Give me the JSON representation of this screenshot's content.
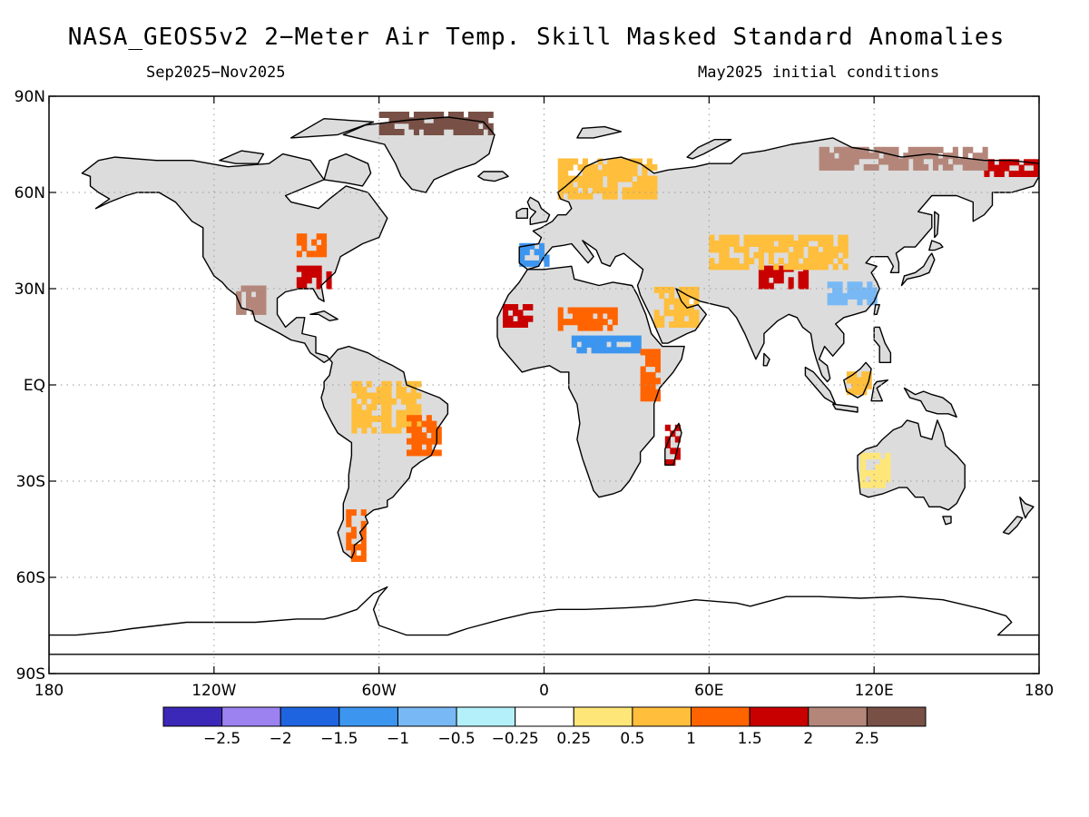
{
  "header": {
    "title": "NASA_GEOS5v2 2−Meter Air Temp. Skill Masked Standard Anomalies",
    "period": "Sep2025−Nov2025",
    "initial_conditions": "May2025 initial conditions"
  },
  "map": {
    "projection": "equirectangular",
    "lon_range": [
      -180,
      180
    ],
    "lat_range": [
      -90,
      90
    ],
    "grid": true,
    "lat_ticks": [
      {
        "value": 90,
        "label": "90N"
      },
      {
        "value": 60,
        "label": "60N"
      },
      {
        "value": 30,
        "label": "30N"
      },
      {
        "value": 0,
        "label": "EQ"
      },
      {
        "value": -30,
        "label": "30S"
      },
      {
        "value": -60,
        "label": "60S"
      },
      {
        "value": -90,
        "label": "90S"
      }
    ],
    "lon_ticks": [
      {
        "value": -180,
        "label": "180"
      },
      {
        "value": -120,
        "label": "120W"
      },
      {
        "value": -60,
        "label": "60W"
      },
      {
        "value": 0,
        "label": "0"
      },
      {
        "value": 60,
        "label": "60E"
      },
      {
        "value": 120,
        "label": "120E"
      },
      {
        "value": 180,
        "label": "180"
      }
    ],
    "colors": {
      "land_masked": "#dcdcdc",
      "coastline": "#000000",
      "gridline": "#9a9a9a",
      "frame": "#000000"
    }
  },
  "colorbar": {
    "colors": [
      "#3b28b8",
      "#9b82f0",
      "#1e64e0",
      "#3c96f0",
      "#78b9f5",
      "#b4f0fa",
      "#ffffff",
      "#ffe678",
      "#ffbe3c",
      "#ff6400",
      "#c80000",
      "#b4867a",
      "#785046"
    ],
    "labels": [
      "−2.5",
      "−2",
      "−1.5",
      "−1",
      "−0.5",
      "−0.25",
      "0.25",
      "0.5",
      "1",
      "1.5",
      "2",
      "2.5"
    ]
  },
  "anomaly_regions": [
    {
      "name": "greenland-north",
      "lon": [
        -60,
        -20
      ],
      "lat": [
        78,
        84
      ],
      "color": "#785046"
    },
    {
      "name": "us-southeast",
      "lon": [
        -90,
        -78
      ],
      "lat": [
        30,
        37
      ],
      "color": "#c80000"
    },
    {
      "name": "us-great-lakes",
      "lon": [
        -90,
        -80
      ],
      "lat": [
        40,
        46
      ],
      "color": "#ff6400"
    },
    {
      "name": "mexico-northwest",
      "lon": [
        -112,
        -102
      ],
      "lat": [
        22,
        30
      ],
      "color": "#b4867a"
    },
    {
      "name": "scandinavia",
      "lon": [
        5,
        40
      ],
      "lat": [
        58,
        70
      ],
      "color": "#ffbe3c"
    },
    {
      "name": "iberia",
      "lon": [
        -9,
        0
      ],
      "lat": [
        37,
        43
      ],
      "color": "#3c96f0"
    },
    {
      "name": "sahara-west",
      "lon": [
        -15,
        -5
      ],
      "lat": [
        18,
        25
      ],
      "color": "#c80000"
    },
    {
      "name": "sahara-east",
      "lon": [
        5,
        25
      ],
      "lat": [
        17,
        24
      ],
      "color": "#ff6400"
    },
    {
      "name": "sahel-cool",
      "lon": [
        10,
        35
      ],
      "lat": [
        10,
        14
      ],
      "color": "#3c96f0"
    },
    {
      "name": "arabia",
      "lon": [
        40,
        55
      ],
      "lat": [
        18,
        30
      ],
      "color": "#ffbe3c"
    },
    {
      "name": "tibet",
      "lon": [
        78,
        95
      ],
      "lat": [
        30,
        36
      ],
      "color": "#c80000"
    },
    {
      "name": "central-asia",
      "lon": [
        60,
        110
      ],
      "lat": [
        36,
        45
      ],
      "color": "#ffbe3c"
    },
    {
      "name": "china-south-cool",
      "lon": [
        103,
        120
      ],
      "lat": [
        25,
        32
      ],
      "color": "#78b9f5"
    },
    {
      "name": "siberia-east",
      "lon": [
        160,
        180
      ],
      "lat": [
        65,
        70
      ],
      "color": "#c80000"
    },
    {
      "name": "siberia-north",
      "lon": [
        100,
        160
      ],
      "lat": [
        67,
        73
      ],
      "color": "#b4867a"
    },
    {
      "name": "amazon",
      "lon": [
        -70,
        -45
      ],
      "lat": [
        -15,
        0
      ],
      "color": "#ffbe3c"
    },
    {
      "name": "brazil-east",
      "lon": [
        -50,
        -38
      ],
      "lat": [
        -22,
        -10
      ],
      "color": "#ff6400"
    },
    {
      "name": "patagonia",
      "lon": [
        -72,
        -66
      ],
      "lat": [
        -55,
        -40
      ],
      "color": "#ff6400"
    },
    {
      "name": "madagascar",
      "lon": [
        44,
        49
      ],
      "lat": [
        -25,
        -14
      ],
      "color": "#c80000"
    },
    {
      "name": "borneo",
      "lon": [
        110,
        118
      ],
      "lat": [
        -3,
        4
      ],
      "color": "#ffbe3c"
    },
    {
      "name": "australia-west",
      "lon": [
        115,
        125
      ],
      "lat": [
        -32,
        -22
      ],
      "color": "#ffe678"
    },
    {
      "name": "east-africa",
      "lon": [
        35,
        42
      ],
      "lat": [
        -5,
        10
      ],
      "color": "#ff6400"
    }
  ]
}
